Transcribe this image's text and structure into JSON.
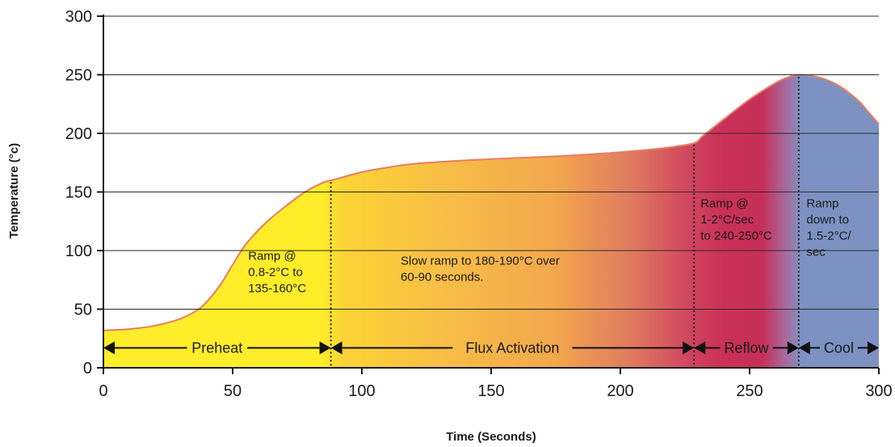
{
  "chart_data": {
    "type": "area",
    "xlabel": "Time (Seconds)",
    "ylabel": "Temperature (°c)",
    "xlim": [
      0,
      300
    ],
    "ylim": [
      0,
      300
    ],
    "x_ticks": [
      0,
      50,
      100,
      150,
      200,
      250,
      300
    ],
    "y_ticks": [
      0,
      50,
      100,
      150,
      200,
      250,
      300
    ],
    "grid": "horizontal",
    "series": [
      {
        "x": [
          0,
          10,
          20,
          30,
          38,
          45,
          50,
          55,
          62,
          70,
          78,
          85,
          90,
          100,
          110,
          120,
          140,
          160,
          180,
          200,
          215,
          222,
          229,
          232,
          240,
          250,
          260,
          265,
          270,
          278,
          285,
          292,
          296,
          300
        ],
        "y": [
          32,
          33,
          36,
          42,
          52,
          70,
          88,
          105,
          122,
          137,
          150,
          158,
          161,
          167,
          171,
          174,
          177,
          179,
          181,
          184,
          187,
          189,
          192,
          198,
          212,
          229,
          243,
          248,
          250,
          247,
          240,
          228,
          218,
          208
        ]
      }
    ],
    "phase_boundaries": [
      88,
      228.5,
      269
    ],
    "phases": [
      {
        "label": "Preheat",
        "start": 0,
        "end": 88
      },
      {
        "label": "Flux Activation",
        "start": 88,
        "end": 228.5
      },
      {
        "label": "Reflow",
        "start": 228.5,
        "end": 269
      },
      {
        "label": "Cool",
        "start": 269,
        "end": 300
      }
    ],
    "phase_arrow_y": 17,
    "annotations": [
      {
        "lines": [
          "Ramp @",
          "0.8-2°C to",
          "135-160°C"
        ],
        "x": 56,
        "y": 92
      },
      {
        "lines": [
          "Slow ramp to 180-190°C over",
          "60-90 seconds."
        ],
        "x": 115,
        "y": 88
      },
      {
        "lines": [
          "Ramp @",
          "1-2°C/sec",
          "to 240-250°C"
        ],
        "x": 231,
        "y": 137
      },
      {
        "lines": [
          "Ramp",
          "down to",
          "1.5-2°C/",
          "sec"
        ],
        "x": 272,
        "y": 137
      }
    ],
    "colors": {
      "preheat": "#ffed29",
      "flux_mid": "#f7bc47",
      "flux_end": "#d4526b",
      "reflow": "#c93057",
      "cool": "#7d92c2",
      "outline": "#e87d62",
      "dotted": "#1a1a1a"
    }
  }
}
